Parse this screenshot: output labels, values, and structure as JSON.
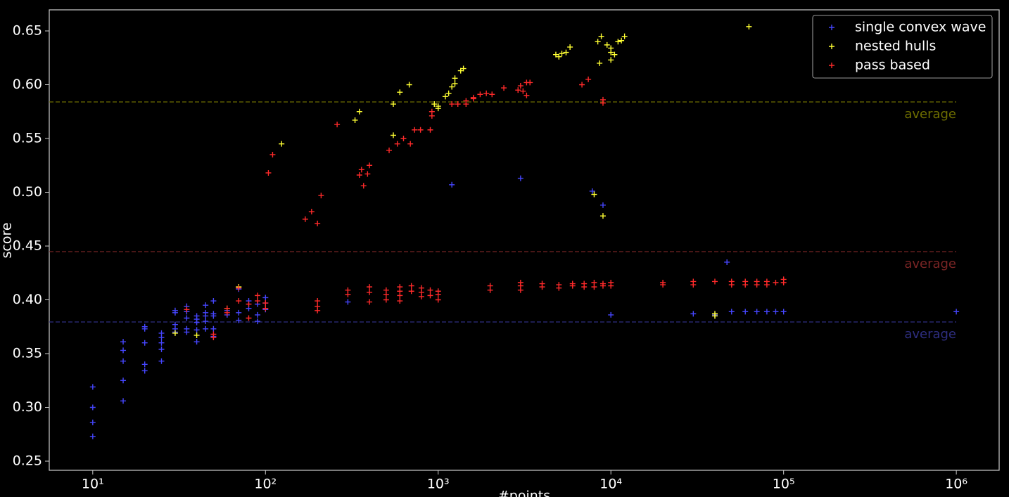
{
  "chart_data": {
    "type": "scatter",
    "x_label": "#points",
    "y_label": "score",
    "log_x": true,
    "xlim": [
      5.6,
      1770000
    ],
    "ylim": [
      0.2415,
      0.6696
    ],
    "xticks": [
      {
        "value": 10,
        "label": "10¹"
      },
      {
        "value": 100,
        "label": "10²"
      },
      {
        "value": 1000,
        "label": "10³"
      },
      {
        "value": 10000,
        "label": "10⁴"
      },
      {
        "value": 100000,
        "label": "10⁵"
      },
      {
        "value": 1000000,
        "label": "10⁶"
      }
    ],
    "yticks": [
      0.25,
      {
        "value": 0.3,
        "label": "0.30"
      },
      0.35,
      {
        "value": 0.4,
        "label": "0.40"
      },
      0.45,
      {
        "value": 0.5,
        "label": "0.50"
      },
      0.55,
      {
        "value": 0.6,
        "label": "0.60"
      },
      0.65
    ],
    "legend_position": "upper right",
    "series": [
      {
        "name": "single convex wave",
        "color": "#4646ff",
        "x": [
          10,
          10,
          10,
          10,
          15,
          15,
          15,
          15,
          15,
          20,
          20,
          20,
          20,
          20,
          25,
          25,
          25,
          25,
          25,
          30,
          30,
          30,
          30,
          30,
          35,
          35,
          35,
          35,
          35,
          40,
          40,
          40,
          40,
          40,
          45,
          45,
          45,
          45,
          45,
          50,
          50,
          50,
          50,
          50,
          60,
          60,
          70,
          70,
          70,
          80,
          80,
          90,
          90,
          90,
          100,
          100,
          100,
          300,
          1200,
          3000,
          7800,
          9000,
          10000,
          30000,
          40000,
          47000,
          50000,
          60000,
          70000,
          80000,
          90000,
          100000,
          1000000
        ],
        "values": [
          0.319,
          0.3,
          0.286,
          0.273,
          0.361,
          0.353,
          0.343,
          0.325,
          0.306,
          0.375,
          0.373,
          0.36,
          0.34,
          0.334,
          0.369,
          0.365,
          0.36,
          0.354,
          0.343,
          0.39,
          0.388,
          0.377,
          0.373,
          0.37,
          0.394,
          0.389,
          0.383,
          0.373,
          0.37,
          0.385,
          0.382,
          0.379,
          0.372,
          0.361,
          0.395,
          0.388,
          0.385,
          0.38,
          0.373,
          0.399,
          0.387,
          0.385,
          0.373,
          0.366,
          0.39,
          0.386,
          0.41,
          0.388,
          0.381,
          0.399,
          0.392,
          0.386,
          0.38,
          0.396,
          0.402,
          0.397,
          0.391,
          0.398,
          0.507,
          0.513,
          0.501,
          0.488,
          0.386,
          0.387,
          0.386,
          0.435,
          0.389,
          0.389,
          0.389,
          0.389,
          0.389,
          0.389,
          0.389
        ]
      },
      {
        "name": "nested hulls",
        "color": "#ffff33",
        "x": [
          30,
          40,
          60,
          70,
          124,
          330,
          350,
          550,
          550,
          600,
          680,
          950,
          1000,
          1000,
          1100,
          1150,
          1200,
          1250,
          1250,
          1350,
          1400,
          4800,
          5000,
          5200,
          5500,
          5800,
          8000,
          8400,
          8600,
          8800,
          9000,
          9500,
          10000,
          10000,
          10000,
          10500,
          11000,
          11500,
          12000,
          40000,
          40000,
          63000
        ],
        "values": [
          0.369,
          0.367,
          0.392,
          0.412,
          0.545,
          0.567,
          0.575,
          0.553,
          0.582,
          0.593,
          0.6,
          0.582,
          0.578,
          0.58,
          0.589,
          0.592,
          0.598,
          0.601,
          0.606,
          0.613,
          0.615,
          0.628,
          0.626,
          0.629,
          0.63,
          0.635,
          0.498,
          0.64,
          0.62,
          0.645,
          0.478,
          0.637,
          0.623,
          0.63,
          0.634,
          0.628,
          0.64,
          0.641,
          0.645,
          0.385,
          0.387,
          0.654
        ]
      },
      {
        "name": "pass based",
        "color": "#ff2a2a",
        "x": [
          35,
          50,
          50,
          60,
          60,
          70,
          70,
          80,
          80,
          90,
          90,
          100,
          100,
          200,
          200,
          200,
          300,
          300,
          400,
          400,
          400,
          500,
          500,
          500,
          600,
          600,
          600,
          600,
          700,
          700,
          800,
          800,
          800,
          900,
          900,
          1000,
          1000,
          1000,
          2000,
          2000,
          3000,
          3000,
          3000,
          4000,
          4000,
          5000,
          5000,
          6000,
          6000,
          7000,
          7000,
          8000,
          8000,
          9000,
          9000,
          10000,
          10000,
          20000,
          20000,
          30000,
          30000,
          40000,
          50000,
          50000,
          60000,
          60000,
          70000,
          70000,
          80000,
          80000,
          90000,
          100000,
          100000,
          104,
          110,
          170,
          185,
          200,
          210,
          260,
          350,
          360,
          370,
          390,
          400,
          520,
          580,
          630,
          690,
          730,
          790,
          900,
          920,
          920,
          1200,
          1300,
          1450,
          1450,
          1600,
          1600,
          1750,
          1900,
          2050,
          2400,
          2900,
          3000,
          3100,
          3250,
          3250,
          3400,
          6800,
          7400,
          9000,
          9000
        ],
        "values": [
          0.391,
          0.368,
          0.365,
          0.392,
          0.388,
          0.411,
          0.399,
          0.396,
          0.383,
          0.404,
          0.399,
          0.397,
          0.392,
          0.399,
          0.394,
          0.39,
          0.409,
          0.405,
          0.412,
          0.407,
          0.398,
          0.409,
          0.405,
          0.4,
          0.412,
          0.408,
          0.404,
          0.399,
          0.413,
          0.408,
          0.411,
          0.407,
          0.403,
          0.409,
          0.404,
          0.408,
          0.405,
          0.4,
          0.413,
          0.409,
          0.416,
          0.413,
          0.409,
          0.415,
          0.412,
          0.414,
          0.411,
          0.415,
          0.413,
          0.415,
          0.412,
          0.416,
          0.412,
          0.415,
          0.413,
          0.416,
          0.413,
          0.416,
          0.414,
          0.417,
          0.414,
          0.417,
          0.417,
          0.414,
          0.417,
          0.414,
          0.417,
          0.414,
          0.417,
          0.414,
          0.416,
          0.419,
          0.416,
          0.518,
          0.535,
          0.475,
          0.482,
          0.471,
          0.497,
          0.563,
          0.516,
          0.521,
          0.506,
          0.517,
          0.525,
          0.539,
          0.545,
          0.55,
          0.545,
          0.558,
          0.558,
          0.558,
          0.571,
          0.575,
          0.582,
          0.582,
          0.585,
          0.582,
          0.587,
          0.588,
          0.591,
          0.592,
          0.591,
          0.597,
          0.595,
          0.599,
          0.594,
          0.59,
          0.602,
          0.602,
          0.6,
          0.605,
          0.586,
          0.583
        ]
      }
    ],
    "average_lines": [
      {
        "label": "average",
        "value": 0.584,
        "color": "#6e6e00"
      },
      {
        "label": "average",
        "value": 0.4448,
        "color": "#7a2525"
      },
      {
        "label": "average",
        "value": 0.3794,
        "color": "#2e2e80"
      }
    ]
  }
}
